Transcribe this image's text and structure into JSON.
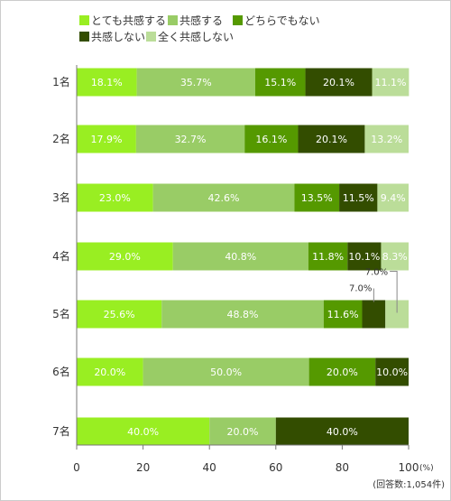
{
  "chart_data": {
    "type": "bar",
    "orientation": "horizontal",
    "stacked": true,
    "categories": [
      "1名",
      "2名",
      "3名",
      "4名",
      "5名",
      "6名",
      "7名"
    ],
    "series": [
      {
        "name": "とても共感する",
        "color": "#99ee22",
        "label_color": "#ffffff",
        "values": [
          18.1,
          17.9,
          23.0,
          29.0,
          25.6,
          20.0,
          40.0
        ]
      },
      {
        "name": "共感する",
        "color": "#99cc66",
        "label_color": "#ffffff",
        "values": [
          35.7,
          32.7,
          42.6,
          40.8,
          48.8,
          50.0,
          20.0
        ]
      },
      {
        "name": "どちらでもない",
        "color": "#559900",
        "label_color": "#ffffff",
        "values": [
          15.1,
          16.1,
          13.5,
          11.8,
          11.6,
          20.0,
          0
        ]
      },
      {
        "name": "共感しない",
        "color": "#334d00",
        "label_color": "#ffffff",
        "values": [
          20.1,
          20.1,
          11.5,
          10.1,
          7.0,
          10.0,
          40.0
        ]
      },
      {
        "name": "全く共感しない",
        "color": "#bbdd99",
        "label_color": "#ffffff",
        "values": [
          11.1,
          13.2,
          9.4,
          8.3,
          7.0,
          0,
          0
        ]
      }
    ],
    "labels": [
      [
        "18.1%",
        "35.7%",
        "15.1%",
        "20.1%",
        "11.1%"
      ],
      [
        "17.9%",
        "32.7%",
        "16.1%",
        "20.1%",
        "13.2%"
      ],
      [
        "23.0%",
        "42.6%",
        "13.5%",
        "11.5%",
        "9.4%"
      ],
      [
        "29.0%",
        "40.8%",
        "11.8%",
        "10.1%",
        "8.3%"
      ],
      [
        "25.6%",
        "48.8%",
        "11.6%",
        "7.0%",
        "7.0%"
      ],
      [
        "20.0%",
        "50.0%",
        "20.0%",
        "10.0%",
        ""
      ],
      [
        "40.0%",
        "20.0%",
        "",
        "40.0%",
        ""
      ]
    ],
    "callout_series": [
      [
        4,
        3
      ],
      [
        4,
        4
      ]
    ],
    "xlim": [
      0,
      100
    ],
    "xticks": [
      0,
      20,
      40,
      60,
      80,
      100
    ],
    "xunit": "(%)",
    "note": "(回答数:1,054件)",
    "grid": false,
    "legend": "top-left"
  }
}
